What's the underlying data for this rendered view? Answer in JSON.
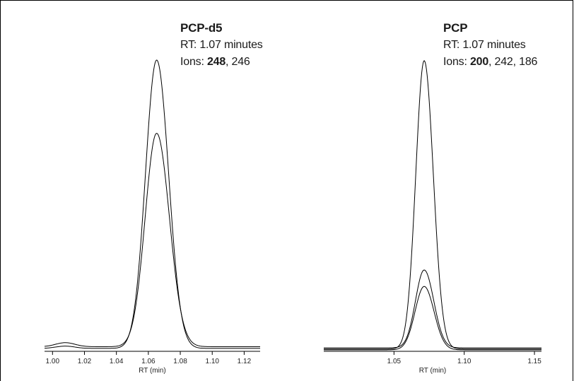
{
  "chart_data": [
    {
      "type": "line",
      "title": "PCP-d5",
      "annotation": {
        "rt_label": "RT: 1.07 minutes",
        "ions_prefix": "Ions: ",
        "ion_primary": "248",
        "ion_rest": ", 246"
      },
      "xlabel": "RT (min)",
      "xlim": [
        0.995,
        1.13
      ],
      "xticks": [
        1.0,
        1.02,
        1.04,
        1.06,
        1.08,
        1.1,
        1.12
      ],
      "xtick_labels": [
        "1.00",
        "1.02",
        "1.04",
        "1.06",
        "1.08",
        "1.10",
        "1.12"
      ],
      "ylim": [
        0,
        100
      ],
      "series": [
        {
          "ion": "248",
          "peak_center": 1.0652,
          "peak_height": 100,
          "left_width": 0.007,
          "right_width": 0.0075,
          "baseline": 1.0,
          "bump": 0.8
        },
        {
          "ion": "246",
          "peak_center": 1.0652,
          "peak_height": 74,
          "left_width": 0.0072,
          "right_width": 0.008,
          "baseline": 1.6,
          "bump": 1.4
        }
      ]
    },
    {
      "type": "line",
      "title": "PCP",
      "annotation": {
        "rt_label": "RT: 1.07 minutes",
        "ions_prefix": "Ions: ",
        "ion_primary": "200",
        "ion_rest": ", 242, 186"
      },
      "xlabel": "RT (min)",
      "xlim": [
        1.0,
        1.155
      ],
      "xticks": [
        1.05,
        1.1,
        1.15
      ],
      "xtick_labels": [
        "1.05",
        "1.10",
        "1.15"
      ],
      "ylim": [
        0,
        100
      ],
      "series": [
        {
          "ion": "200",
          "peak_center": 1.0715,
          "peak_height": 100,
          "left_width": 0.006,
          "right_width": 0.0065,
          "baseline": 0.8,
          "bump": 0
        },
        {
          "ion": "242",
          "peak_center": 1.0715,
          "peak_height": 27,
          "left_width": 0.0062,
          "right_width": 0.0068,
          "baseline": 1.2,
          "bump": 0
        },
        {
          "ion": "186",
          "peak_center": 1.0715,
          "peak_height": 22,
          "left_width": 0.0065,
          "right_width": 0.007,
          "baseline": 0.5,
          "bump": 0
        }
      ]
    }
  ]
}
